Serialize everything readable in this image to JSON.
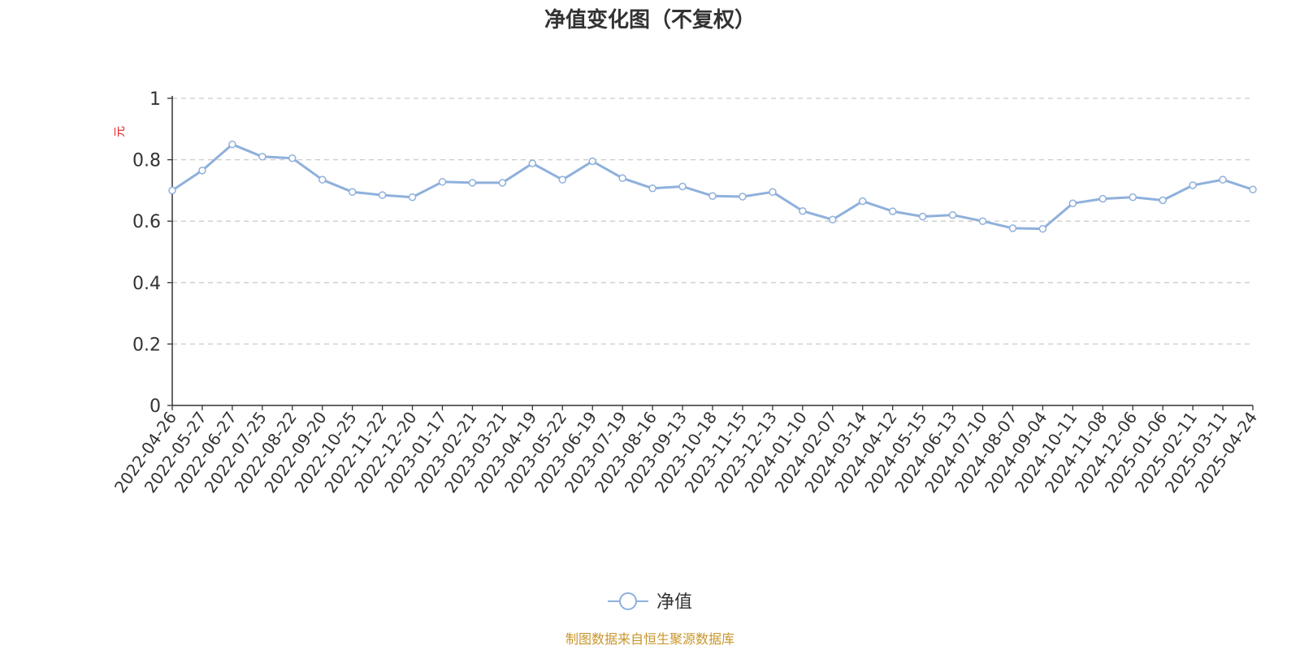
{
  "chart_data": {
    "type": "line",
    "title": "净值变化图（不复权）",
    "ylabel": "元",
    "ylim": [
      0,
      1
    ],
    "yticks": [
      "0",
      "0.2",
      "0.4",
      "0.6",
      "0.8",
      "1"
    ],
    "grid": true,
    "legend_position": "bottom-center",
    "x": [
      "2022-04-26",
      "2022-05-27",
      "2022-06-27",
      "2022-07-25",
      "2022-08-22",
      "2022-09-20",
      "2022-10-25",
      "2022-11-22",
      "2022-12-20",
      "2023-01-17",
      "2023-02-21",
      "2023-03-21",
      "2023-04-19",
      "2023-05-22",
      "2023-06-19",
      "2023-07-19",
      "2023-08-16",
      "2023-09-13",
      "2023-10-18",
      "2023-11-15",
      "2023-12-13",
      "2024-01-10",
      "2024-02-07",
      "2024-03-14",
      "2024-04-12",
      "2024-05-15",
      "2024-06-13",
      "2024-07-10",
      "2024-08-07",
      "2024-09-04",
      "2024-10-11",
      "2024-11-08",
      "2024-12-06",
      "2025-01-06",
      "2025-02-11",
      "2025-03-11",
      "2025-04-24"
    ],
    "series": [
      {
        "name": "净值",
        "color": "#8fb0dc",
        "values": [
          0.7,
          0.765,
          0.85,
          0.81,
          0.805,
          0.735,
          0.695,
          0.685,
          0.678,
          0.728,
          0.725,
          0.725,
          0.788,
          0.735,
          0.795,
          0.74,
          0.707,
          0.713,
          0.682,
          0.68,
          0.695,
          0.633,
          0.605,
          0.665,
          0.632,
          0.615,
          0.62,
          0.6,
          0.577,
          0.575,
          0.658,
          0.673,
          0.678,
          0.668,
          0.717,
          0.735,
          0.703
        ]
      }
    ]
  },
  "source": "制图数据来自恒生聚源数据库"
}
